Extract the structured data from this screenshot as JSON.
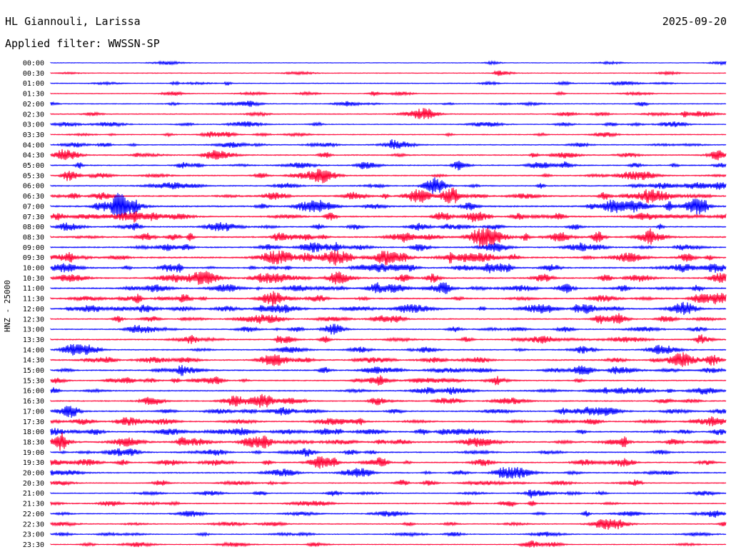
{
  "header": {
    "station": "HL Giannouli, Larissa",
    "date": "2025-09-20",
    "filter": "Applied filter: WWSSN-SP"
  },
  "chart_data": {
    "type": "line",
    "title": "HL Giannouli, Larissa",
    "date": "2025-09-20",
    "subtitle": "Applied filter: WWSSN-SP",
    "ylabel": "HNZ - 25000",
    "row_labels": [
      "00:00",
      "00:30",
      "01:00",
      "01:30",
      "02:00",
      "02:30",
      "03:00",
      "03:30",
      "04:00",
      "04:30",
      "05:00",
      "05:30",
      "06:00",
      "06:30",
      "07:00",
      "07:30",
      "08:00",
      "08:30",
      "09:00",
      "09:30",
      "10:00",
      "10:30",
      "11:00",
      "11:30",
      "12:00",
      "12:30",
      "13:00",
      "13:30",
      "14:00",
      "14:30",
      "15:00",
      "15:30",
      "16:00",
      "16:30",
      "17:00",
      "17:30",
      "18:00",
      "18:30",
      "19:00",
      "19:30",
      "20:00",
      "20:30",
      "21:00",
      "21:30",
      "22:00",
      "22:30",
      "23:00",
      "23:30"
    ],
    "row_activity": [
      0.05,
      0.1,
      0.2,
      0.15,
      0.25,
      0.3,
      0.25,
      0.25,
      0.35,
      0.45,
      0.45,
      0.5,
      0.5,
      0.7,
      0.85,
      0.7,
      0.5,
      0.75,
      0.6,
      0.9,
      0.7,
      0.7,
      0.7,
      0.65,
      0.7,
      0.55,
      0.4,
      0.55,
      0.5,
      0.6,
      0.55,
      0.45,
      0.5,
      0.45,
      0.5,
      0.5,
      0.6,
      0.75,
      0.55,
      0.5,
      0.45,
      0.35,
      0.3,
      0.35,
      0.3,
      0.3,
      0.25,
      0.2
    ],
    "colors": [
      "#0000ff",
      "#ff0033"
    ],
    "grid": false
  }
}
